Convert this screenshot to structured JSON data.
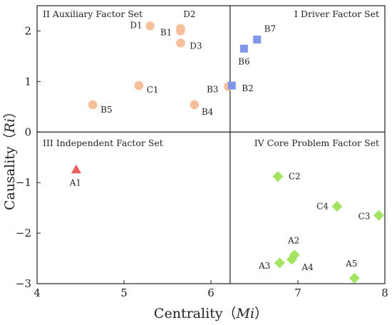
{
  "chart_data": {
    "type": "scatter",
    "xlabel": "Centrality（",
    "xlabel_var": "Mi",
    "xlabel_end": "）",
    "ylabel": "Causality（",
    "ylabel_var": "Ri",
    "ylabel_end": "）",
    "xlim": [
      4,
      8
    ],
    "ylim": [
      -3,
      2.5
    ],
    "xticks": [
      4,
      5,
      6,
      7,
      8
    ],
    "yticks": [
      -3,
      -2,
      -1,
      0,
      1,
      2
    ],
    "divider_x": 6.22,
    "divider_y": 0,
    "grid": false,
    "quadrant_labels": {
      "q1": "I Driver Factor Set",
      "q2": "II Auxiliary Factor Set",
      "q3": "III  Independent Factor Set",
      "q4": "IV  Core Problem Factor Set"
    },
    "series": [
      {
        "marker": "circle",
        "color": "#f7bf9a",
        "points": [
          {
            "label": "D1",
            "x": 5.3,
            "y": 2.1
          },
          {
            "label": "D2",
            "x": 5.65,
            "y": 2.05
          },
          {
            "label": "B1",
            "x": 5.65,
            "y": 2.0
          },
          {
            "label": "D3",
            "x": 5.65,
            "y": 1.76
          },
          {
            "label": "C1",
            "x": 5.17,
            "y": 0.92
          },
          {
            "label": "B3",
            "x": 6.2,
            "y": 0.9
          },
          {
            "label": "B4",
            "x": 5.81,
            "y": 0.54
          },
          {
            "label": "B5",
            "x": 4.64,
            "y": 0.54
          }
        ]
      },
      {
        "marker": "square",
        "color": "#7f96ea",
        "points": [
          {
            "label": "B7",
            "x": 6.53,
            "y": 1.83
          },
          {
            "label": "B6",
            "x": 6.38,
            "y": 1.65
          },
          {
            "label": "B2",
            "x": 6.24,
            "y": 0.92
          }
        ]
      },
      {
        "marker": "triangle",
        "color": "#ea5f5b",
        "points": [
          {
            "label": "A1",
            "x": 4.45,
            "y": -0.74
          }
        ]
      },
      {
        "marker": "diamond",
        "color": "#a3e463",
        "points": [
          {
            "label": "C2",
            "x": 6.77,
            "y": -0.88
          },
          {
            "label": "C4",
            "x": 7.45,
            "y": -1.47
          },
          {
            "label": "C3",
            "x": 7.93,
            "y": -1.65
          },
          {
            "label": "A2",
            "x": 6.96,
            "y": -2.43
          },
          {
            "label": "A4",
            "x": 6.93,
            "y": -2.52
          },
          {
            "label": "A3",
            "x": 6.79,
            "y": -2.59
          },
          {
            "label": "A5",
            "x": 7.65,
            "y": -2.89
          }
        ]
      }
    ]
  }
}
